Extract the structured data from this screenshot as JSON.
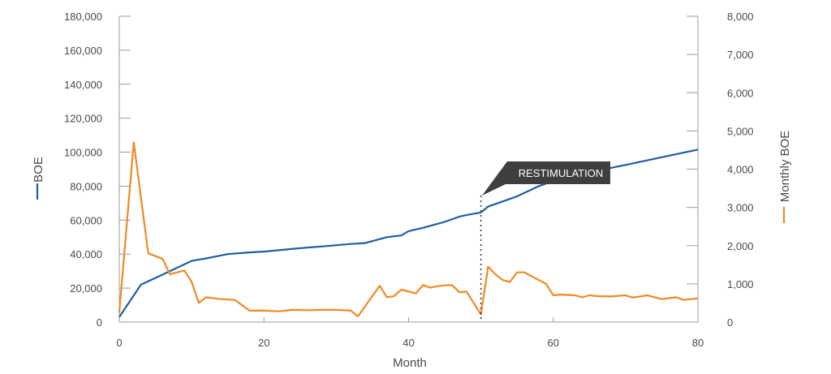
{
  "chart_data": {
    "type": "line",
    "xlabel": "Month",
    "xlim": [
      0,
      80
    ],
    "x_ticks": [
      0,
      20,
      40,
      60,
      80
    ],
    "y_left": {
      "label": "BOE",
      "lim": [
        0,
        180000
      ],
      "ticks": [
        "0",
        "20,000",
        "40,000",
        "60,000",
        "80,000",
        "100,000",
        "120,000",
        "140,000",
        "160,000",
        "180,000"
      ]
    },
    "y_right": {
      "label": "Monthly BOE",
      "lim": [
        0,
        8000
      ],
      "ticks": [
        "0",
        "1,000",
        "2,000",
        "3,000",
        "4,000",
        "5,000",
        "6,000",
        "7,000",
        "8,000"
      ]
    },
    "series": [
      {
        "name": "BOE",
        "axis": "left",
        "color": "#1f5f9e",
        "points": [
          [
            0,
            3000
          ],
          [
            3,
            22000
          ],
          [
            6,
            28000
          ],
          [
            8,
            32000
          ],
          [
            10,
            36000
          ],
          [
            12,
            37500
          ],
          [
            15,
            40000
          ],
          [
            18,
            41000
          ],
          [
            20,
            41500
          ],
          [
            25,
            43500
          ],
          [
            28,
            44500
          ],
          [
            32,
            46000
          ],
          [
            34,
            46500
          ],
          [
            37,
            50000
          ],
          [
            39,
            51000
          ],
          [
            40,
            53500
          ],
          [
            42,
            55500
          ],
          [
            45,
            59000
          ],
          [
            47,
            62000
          ],
          [
            48,
            63000
          ],
          [
            50,
            64500
          ],
          [
            51,
            68000
          ],
          [
            53,
            71000
          ],
          [
            55,
            74000
          ],
          [
            58,
            80000
          ],
          [
            60,
            83000
          ],
          [
            63,
            86000
          ],
          [
            66,
            89000
          ],
          [
            70,
            92500
          ],
          [
            75,
            97000
          ],
          [
            80,
            101500
          ]
        ]
      },
      {
        "name": "Monthly BOE",
        "axis": "right",
        "color": "#ef8a26",
        "points": [
          [
            0,
            250
          ],
          [
            2,
            4700
          ],
          [
            4,
            1800
          ],
          [
            6,
            1650
          ],
          [
            7,
            1250
          ],
          [
            9,
            1350
          ],
          [
            10,
            1050
          ],
          [
            11,
            500
          ],
          [
            12,
            650
          ],
          [
            14,
            600
          ],
          [
            16,
            580
          ],
          [
            18,
            300
          ],
          [
            20,
            300
          ],
          [
            22,
            280
          ],
          [
            24,
            320
          ],
          [
            26,
            310
          ],
          [
            28,
            320
          ],
          [
            30,
            320
          ],
          [
            32,
            300
          ],
          [
            33,
            150
          ],
          [
            36,
            950
          ],
          [
            37,
            650
          ],
          [
            38,
            680
          ],
          [
            39,
            850
          ],
          [
            40,
            800
          ],
          [
            41,
            750
          ],
          [
            42,
            970
          ],
          [
            43,
            900
          ],
          [
            44,
            940
          ],
          [
            45,
            960
          ],
          [
            46,
            970
          ],
          [
            47,
            780
          ],
          [
            48,
            800
          ],
          [
            49,
            500
          ],
          [
            50,
            200
          ],
          [
            51,
            1450
          ],
          [
            52,
            1250
          ],
          [
            53,
            1100
          ],
          [
            54,
            1050
          ],
          [
            55,
            1300
          ],
          [
            56,
            1300
          ],
          [
            57,
            1200
          ],
          [
            58,
            1100
          ],
          [
            59,
            1000
          ],
          [
            60,
            700
          ],
          [
            61,
            720
          ],
          [
            63,
            700
          ],
          [
            64,
            650
          ],
          [
            65,
            700
          ],
          [
            66,
            680
          ],
          [
            68,
            670
          ],
          [
            70,
            700
          ],
          [
            71,
            640
          ],
          [
            73,
            700
          ],
          [
            75,
            600
          ],
          [
            77,
            650
          ],
          [
            78,
            580
          ],
          [
            80,
            620
          ]
        ]
      }
    ],
    "annotations": [
      {
        "text": "RESTIMULATION",
        "x": 50
      }
    ]
  }
}
